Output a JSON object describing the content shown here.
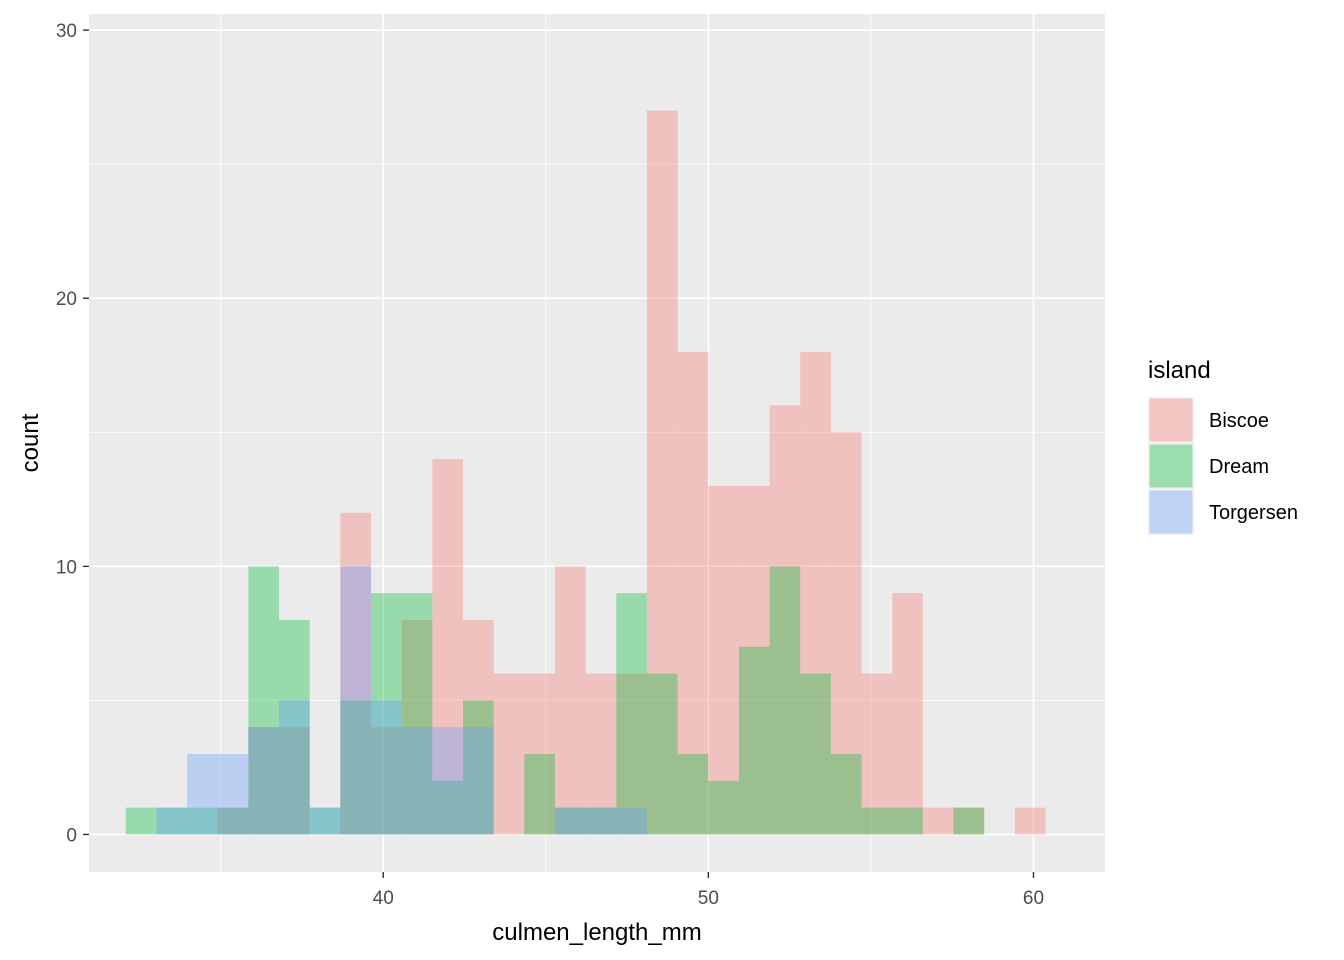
{
  "chart_data": {
    "type": "bar",
    "subtype": "stacked-histogram",
    "title": "",
    "xlabel": "culmen_length_mm",
    "ylabel": "count",
    "xlim": [
      30.95,
      62.2
    ],
    "ylim": [
      -1.4,
      30.6
    ],
    "x_ticks": [
      40,
      50,
      60
    ],
    "y_ticks": [
      0,
      10,
      20,
      30
    ],
    "x_minor_ticks": [
      35,
      45,
      55
    ],
    "y_minor_ticks": [
      5,
      15,
      25
    ],
    "grid": true,
    "background": "#EBEBEB",
    "legend": {
      "title": "island",
      "position": "right",
      "entries": [
        "Biscoe",
        "Dream",
        "Torgersen"
      ]
    },
    "bins": {
      "start": 32.08,
      "width": 0.943,
      "count": 30
    },
    "series": [
      {
        "name": "Biscoe",
        "color": "#F8766D",
        "values": [
          0,
          0,
          0,
          1,
          4,
          4,
          0,
          12,
          4,
          8,
          14,
          8,
          6,
          6,
          10,
          6,
          6,
          27,
          18,
          13,
          13,
          16,
          18,
          15,
          6,
          9,
          1,
          1,
          0,
          1
        ]
      },
      {
        "name": "Dream",
        "color": "#00BA38",
        "values": [
          1,
          1,
          1,
          1,
          10,
          8,
          1,
          5,
          9,
          9,
          2,
          5,
          0,
          3,
          1,
          1,
          9,
          6,
          3,
          2,
          7,
          10,
          6,
          3,
          1,
          1,
          0,
          1,
          0,
          0
        ]
      },
      {
        "name": "Torgersen",
        "color": "#619CFF",
        "values": [
          0,
          1,
          3,
          3,
          4,
          5,
          1,
          10,
          5,
          4,
          4,
          4,
          0,
          0,
          1,
          1,
          1,
          0,
          0,
          0,
          0,
          0,
          0,
          0,
          0,
          0,
          0,
          0,
          0,
          0
        ]
      }
    ]
  }
}
